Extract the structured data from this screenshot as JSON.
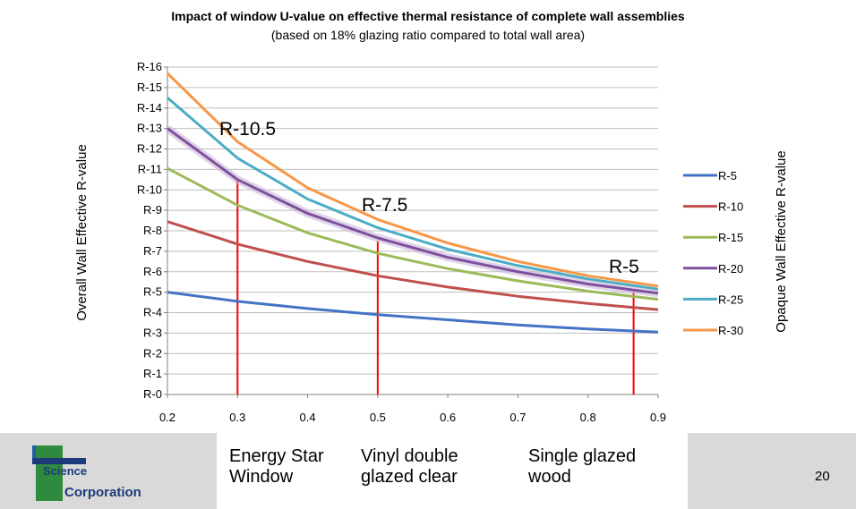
{
  "chart_data": {
    "type": "line",
    "title": "Impact of window U-value on effective thermal resistance of complete wall assemblies",
    "subtitle": "(based on 18% glazing ratio compared to total wall area)",
    "xlabel": "",
    "ylabel": "Overall Wall Effective R-value",
    "legend_title": "Opaque Wall Effective R-value",
    "legend_position": "right",
    "grid": true,
    "xlim": [
      0.2,
      0.9
    ],
    "ylim": [
      0,
      16
    ],
    "x_ticks": [
      "0.2",
      "0.3",
      "0.4",
      "0.5",
      "0.6",
      "0.7",
      "0.8",
      "0.9"
    ],
    "y_ticks": [
      "R-0",
      "R-1",
      "R-2",
      "R-3",
      "R-4",
      "R-5",
      "R-6",
      "R-7",
      "R-8",
      "R-9",
      "R-10",
      "R-11",
      "R-12",
      "R-13",
      "R-14",
      "R-15",
      "R-16"
    ],
    "x": [
      0.2,
      0.3,
      0.4,
      0.5,
      0.6,
      0.7,
      0.8,
      0.9
    ],
    "series": [
      {
        "name": "R-5",
        "color": "#4472c4",
        "values": [
          5.0,
          4.55,
          4.2,
          3.9,
          3.65,
          3.4,
          3.2,
          3.05
        ]
      },
      {
        "name": "R-10",
        "color": "#c0504d",
        "values": [
          8.45,
          7.35,
          6.5,
          5.8,
          5.25,
          4.8,
          4.45,
          4.15
        ]
      },
      {
        "name": "R-15",
        "color": "#9bbb59",
        "values": [
          11.05,
          9.25,
          7.9,
          6.9,
          6.15,
          5.55,
          5.05,
          4.65
        ]
      },
      {
        "name": "R-20",
        "color": "#7f4f9f",
        "values": [
          13.0,
          10.5,
          8.85,
          7.65,
          6.7,
          6.0,
          5.4,
          4.95
        ]
      },
      {
        "name": "R-25",
        "color": "#4bacc6",
        "values": [
          14.5,
          11.55,
          9.55,
          8.15,
          7.1,
          6.3,
          5.65,
          5.15
        ]
      },
      {
        "name": "R-30",
        "color": "#f79646",
        "values": [
          15.7,
          12.35,
          10.1,
          8.55,
          7.4,
          6.5,
          5.8,
          5.3
        ]
      }
    ],
    "annotations": [
      {
        "text": "R-10.5",
        "x": 0.3,
        "y": 10.5
      },
      {
        "text": "R-7.5",
        "x": 0.5,
        "y": 7.5
      },
      {
        "text": "R-5",
        "x": 0.865,
        "y": 5.0
      }
    ],
    "categories": [
      {
        "label": "Energy Star\nWindow"
      },
      {
        "label": "Vinyl double\nglazed clear"
      },
      {
        "label": "Single glazed\nwood"
      }
    ]
  },
  "logo": {
    "line1": "Science",
    "line2": "Corporation"
  },
  "page_number": "20",
  "colors": {
    "marker_line": "#ff0000",
    "grid": "#bfbfbf",
    "footer": "#d9d9d9",
    "logo_green": "#2e8b3e"
  }
}
